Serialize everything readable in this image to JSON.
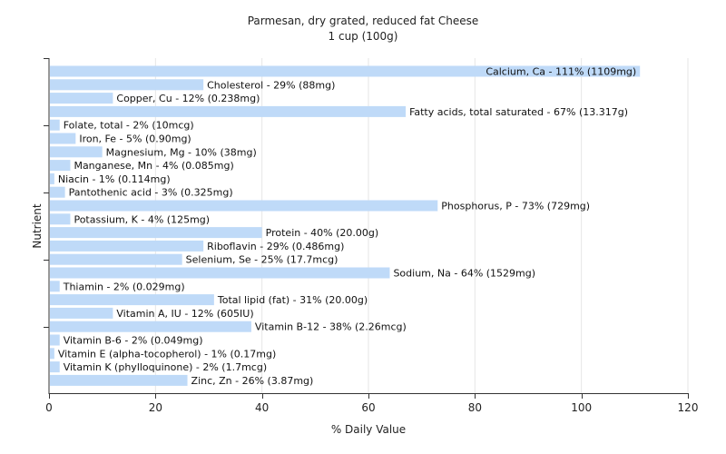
{
  "chart_data": {
    "type": "bar",
    "orientation": "horizontal",
    "title": "Parmesan, dry grated, reduced fat Cheese",
    "subtitle": "1 cup (100g)",
    "xlabel": "% Daily Value",
    "ylabel": "Nutrient",
    "xlim": [
      0,
      120
    ],
    "xticks": [
      0,
      20,
      40,
      60,
      80,
      100,
      120
    ],
    "grid": true,
    "bar_color": "#bfdaf8",
    "categories": [
      "Calcium, Ca",
      "Cholesterol",
      "Copper, Cu",
      "Fatty acids, total saturated",
      "Folate, total",
      "Iron, Fe",
      "Magnesium, Mg",
      "Manganese, Mn",
      "Niacin",
      "Pantothenic acid",
      "Phosphorus, P",
      "Potassium, K",
      "Protein",
      "Riboflavin",
      "Selenium, Se",
      "Sodium, Na",
      "Thiamin",
      "Total lipid (fat)",
      "Vitamin A, IU",
      "Vitamin B-12",
      "Vitamin B-6",
      "Vitamin E (alpha-tocopherol)",
      "Vitamin K (phylloquinone)",
      "Zinc, Zn"
    ],
    "values": [
      111,
      29,
      12,
      67,
      2,
      5,
      10,
      4,
      1,
      3,
      73,
      4,
      40,
      29,
      25,
      64,
      2,
      31,
      12,
      38,
      2,
      1,
      2,
      26
    ],
    "labels": [
      "Calcium, Ca - 111% (1109mg)",
      "Cholesterol - 29% (88mg)",
      "Copper, Cu - 12% (0.238mg)",
      "Fatty acids, total saturated - 67% (13.317g)",
      "Folate, total - 2% (10mcg)",
      "Iron, Fe - 5% (0.90mg)",
      "Magnesium, Mg - 10% (38mg)",
      "Manganese, Mn - 4% (0.085mg)",
      "Niacin - 1% (0.114mg)",
      "Pantothenic acid - 3% (0.325mg)",
      "Phosphorus, P - 73% (729mg)",
      "Potassium, K - 4% (125mg)",
      "Protein - 40% (20.00g)",
      "Riboflavin - 29% (0.486mg)",
      "Selenium, Se - 25% (17.7mcg)",
      "Sodium, Na - 64% (1529mg)",
      "Thiamin - 2% (0.029mg)",
      "Total lipid (fat) - 31% (20.00g)",
      "Vitamin A, IU - 12% (605IU)",
      "Vitamin B-12 - 38% (2.26mcg)",
      "Vitamin B-6 - 2% (0.049mg)",
      "Vitamin E (alpha-tocopherol) - 1% (0.17mg)",
      "Vitamin K (phylloquinone) - 2% (1.7mcg)",
      "Zinc, Zn - 26% (3.87mg)"
    ]
  }
}
